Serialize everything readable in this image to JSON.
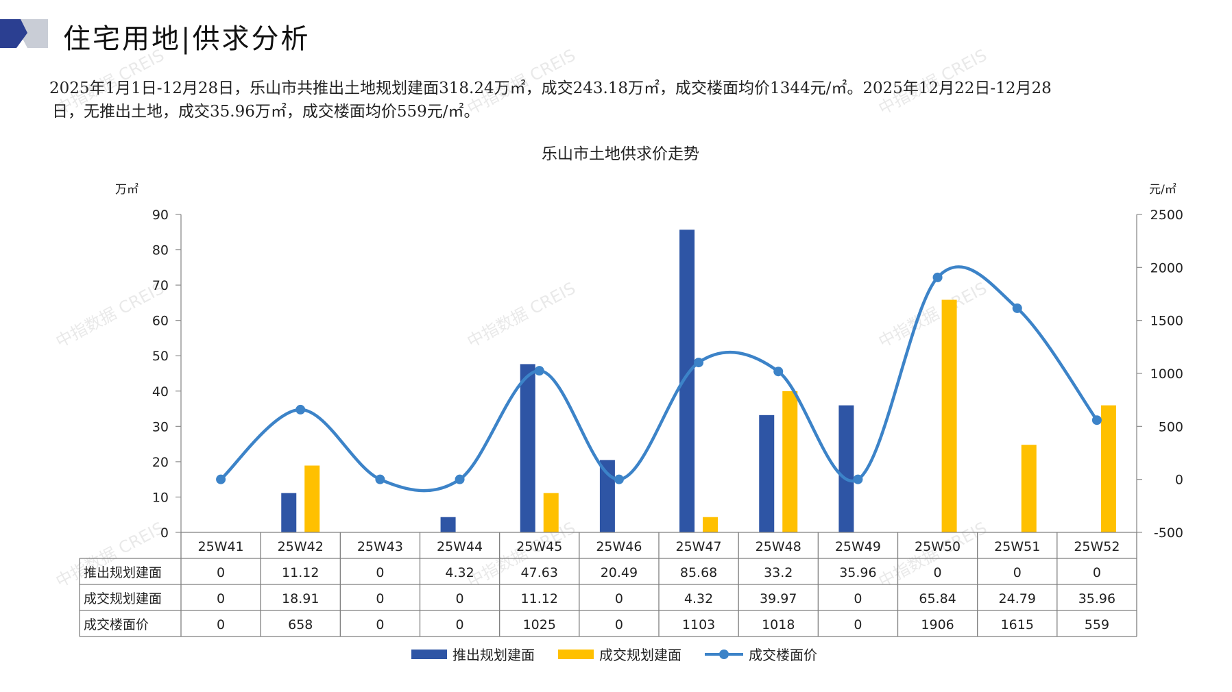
{
  "header": {
    "title": "住宅用地|供求分析"
  },
  "summary": {
    "line1": "2025年1月1日-12月28日，乐山市共推出土地规划建面318.24万㎡，成交243.18万㎡，成交楼面均价1344元/㎡。2025年12月22日-12月28",
    "line2": "日，无推出土地，成交35.96万㎡，成交楼面均价559元/㎡。"
  },
  "watermark": "中指数据 CREIS",
  "colors": {
    "supply": "#2E55A5",
    "deal": "#FFC000",
    "price": "#3C83C8",
    "header_dark": "#2B3F91",
    "header_grey": "#C9CDD6"
  },
  "chart_data": {
    "type": "bar",
    "title": "乐山市土地供求价走势",
    "y_left_unit": "万㎡",
    "y_right_unit": "元/㎡",
    "ylim_left": [
      0,
      90
    ],
    "ylim_right": [
      -500,
      2500
    ],
    "yticks_left": [
      0,
      10,
      20,
      30,
      40,
      50,
      60,
      70,
      80,
      90
    ],
    "yticks_right": [
      -500,
      0,
      500,
      1000,
      1500,
      2000,
      2500
    ],
    "categories": [
      "25W41",
      "25W42",
      "25W43",
      "25W44",
      "25W45",
      "25W46",
      "25W47",
      "25W48",
      "25W49",
      "25W50",
      "25W51",
      "25W52"
    ],
    "series": [
      {
        "name": "推出规划建面",
        "type": "bar",
        "axis": "left",
        "color": "#2E55A5",
        "values": [
          0,
          11.12,
          0,
          4.32,
          47.63,
          20.49,
          85.68,
          33.2,
          35.96,
          0,
          0,
          0
        ],
        "labels": [
          "0",
          "11.12",
          "0",
          "4.32",
          "47.63",
          "20.49",
          "85.68",
          "33.2",
          "35.96",
          "0",
          "0",
          "0"
        ]
      },
      {
        "name": "成交规划建面",
        "type": "bar",
        "axis": "left",
        "color": "#FFC000",
        "values": [
          0,
          18.91,
          0,
          0,
          11.12,
          0,
          4.32,
          39.97,
          0,
          65.84,
          24.79,
          35.96
        ],
        "labels": [
          "0",
          "18.91",
          "0",
          "0",
          "11.12",
          "0",
          "4.32",
          "39.97",
          "0",
          "65.84",
          "24.79",
          "35.96"
        ]
      },
      {
        "name": "成交楼面价",
        "type": "line",
        "axis": "right",
        "color": "#3C83C8",
        "values": [
          0,
          658,
          0,
          0,
          1025,
          0,
          1103,
          1018,
          0,
          1906,
          1615,
          559
        ],
        "labels": [
          "0",
          "658",
          "0",
          "0",
          "1025",
          "0",
          "1103",
          "1018",
          "0",
          "1906",
          "1615",
          "559"
        ]
      }
    ],
    "legend_position": "bottom",
    "grid": false
  }
}
